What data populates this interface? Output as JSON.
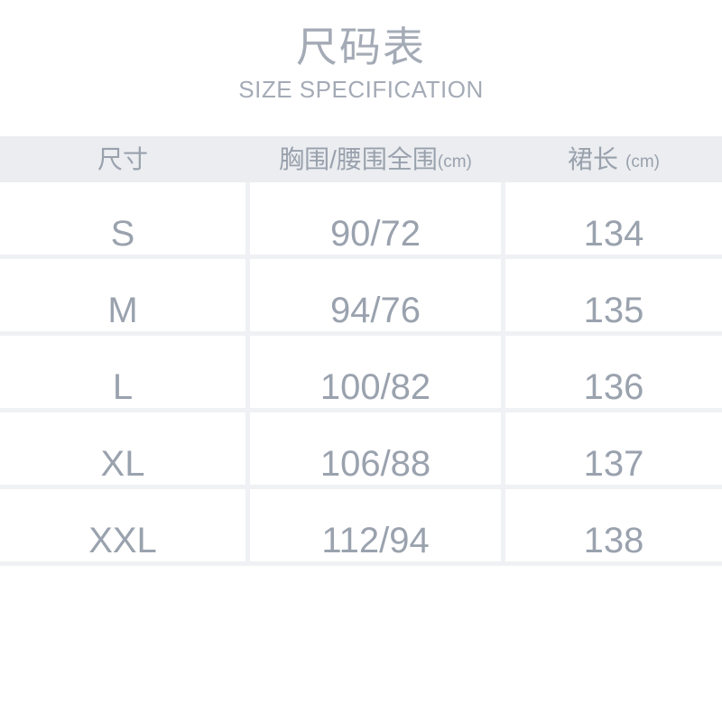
{
  "header": {
    "title": "尺码表",
    "subtitle": "SIZE SPECIFICATION"
  },
  "table": {
    "columns": [
      {
        "label": "尺寸",
        "unit": ""
      },
      {
        "label": "胸围/腰围全围",
        "unit": "(cm)"
      },
      {
        "label": "裙长",
        "unit": "(cm)"
      }
    ],
    "rows": [
      {
        "size": "S",
        "bust_waist": "90/72",
        "skirt_length": "134"
      },
      {
        "size": "M",
        "bust_waist": "94/76",
        "skirt_length": "135"
      },
      {
        "size": "L",
        "bust_waist": "100/82",
        "skirt_length": "136"
      },
      {
        "size": "XL",
        "bust_waist": "106/88",
        "skirt_length": "137"
      },
      {
        "size": "XXL",
        "bust_waist": "112/94",
        "skirt_length": "138"
      }
    ]
  },
  "chart_data": {
    "type": "table",
    "title": "尺码表 SIZE SPECIFICATION",
    "categories": [
      "S",
      "M",
      "L",
      "XL",
      "XXL"
    ],
    "series": [
      {
        "name": "胸围/腰围全围(cm)",
        "values": [
          "90/72",
          "94/76",
          "100/82",
          "106/88",
          "112/94"
        ]
      },
      {
        "name": "裙长(cm)",
        "values": [
          134,
          135,
          136,
          137,
          138
        ]
      }
    ]
  },
  "colors": {
    "body_text": "#9aa2ae",
    "title_text": "#a4abb6",
    "header_text": "#99a1ad",
    "header_background": "#ebedf0",
    "gridline": "#f0f1f4"
  }
}
